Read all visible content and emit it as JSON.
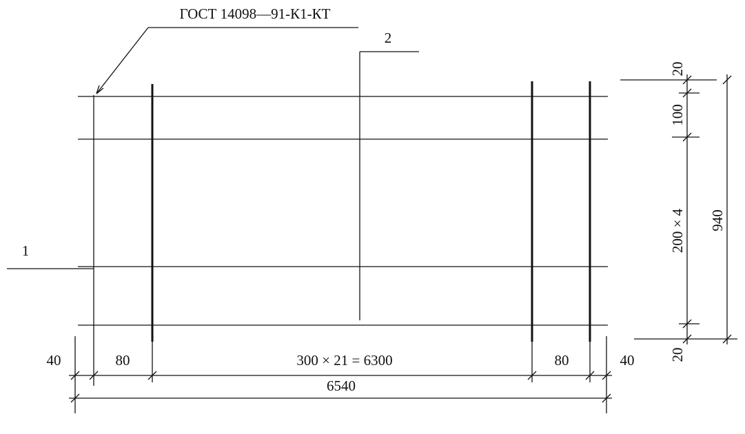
{
  "leaders": {
    "gost": "ГОСТ 14098—91-К1-КТ",
    "item_2": "2",
    "item_1": "1"
  },
  "right_dimensions": {
    "top_cover": "20",
    "first_pitch": "100",
    "pitch_group": "200 × 4",
    "total_height": "940",
    "bottom_cover": "20"
  },
  "bottom_dimensions": {
    "left_cover": "40",
    "left_pitch": "80",
    "middle_group": "300 × 21 = 6300",
    "right_pitch": "80",
    "right_cover": "40",
    "total_length": "6540"
  }
}
